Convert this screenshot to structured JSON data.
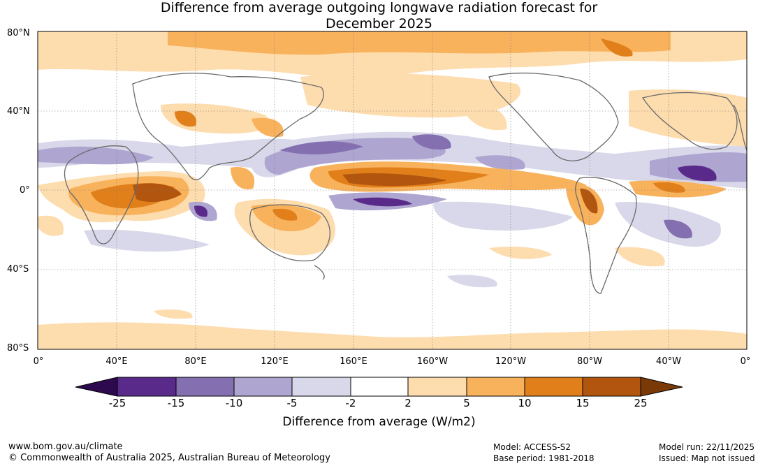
{
  "title": {
    "line1": "Difference from average outgoing longwave radiation forecast for",
    "line2": "December 2025"
  },
  "lat_labels": [
    "80°N",
    "40°N",
    "0°",
    "40°S",
    "80°S"
  ],
  "lon_labels": [
    "0°",
    "40°E",
    "80°E",
    "120°E",
    "160°E",
    "160°W",
    "120°W",
    "80°W",
    "40°W",
    "0°"
  ],
  "colorbar": {
    "ticks": [
      "-25",
      "-15",
      "-10",
      "-5",
      "-2",
      "2",
      "5",
      "10",
      "15",
      "25"
    ],
    "colors": [
      "#2d0a4e",
      "#5a2a8a",
      "#8470b0",
      "#aea6d0",
      "#d8d8ea",
      "#ffffff",
      "#fddcae",
      "#f9b25c",
      "#e17f1a",
      "#b2560f",
      "#7a3a08"
    ],
    "title": "Difference from average (W/m2)"
  },
  "footer": {
    "website": "www.bom.gov.au/climate",
    "copyright": "© Commonwealth of Australia 2025, Australian Bureau of Meteorology",
    "model": "Model: ACCESS-S2",
    "base_period": "Base period: 1981-2018",
    "model_run": "Model run: 22/11/2025",
    "issued": "Issued: Map not issued"
  }
}
